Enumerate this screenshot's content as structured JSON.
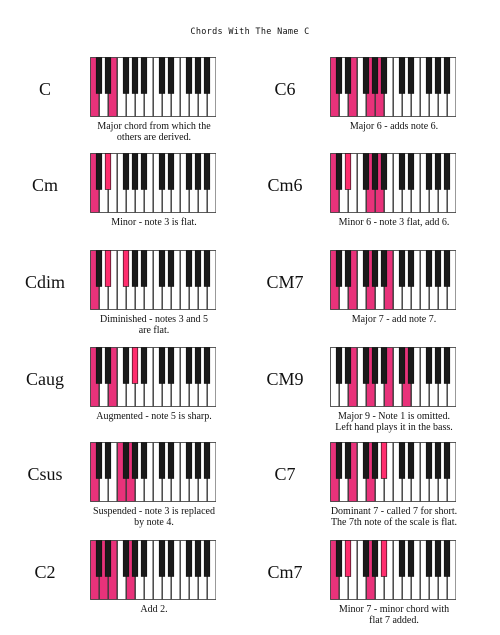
{
  "title": "Chords With The Name C",
  "colors": {
    "highlight_white": "#e8327a",
    "highlight_black": "#ff2e6e",
    "outline": "#333333"
  },
  "chords": [
    {
      "name": "C",
      "caption_lines": [
        "Major chord from which the",
        "others are derived."
      ],
      "white_keys": [
        0,
        2
      ],
      "black_keys": []
    },
    {
      "name": "C6",
      "caption_lines": [
        "Major 6 - adds note 6."
      ],
      "white_keys": [
        0,
        2,
        4,
        5
      ],
      "black_keys": []
    },
    {
      "name": "Cm",
      "caption_lines": [
        "Minor - note 3 is flat."
      ],
      "white_keys": [
        0
      ],
      "black_keys": [
        1
      ]
    },
    {
      "name": "Cm6",
      "caption_lines": [
        "Minor 6 - note 3 flat, add 6."
      ],
      "white_keys": [
        0,
        4,
        5
      ],
      "black_keys": [
        1
      ]
    },
    {
      "name": "Cdim",
      "caption_lines": [
        "Diminished - notes 3 and 5",
        "are flat."
      ],
      "white_keys": [
        0
      ],
      "black_keys": [
        1,
        2
      ]
    },
    {
      "name": "CM7",
      "caption_lines": [
        "Major 7 - add note 7."
      ],
      "white_keys": [
        0,
        2,
        4,
        6
      ],
      "black_keys": []
    },
    {
      "name": "Caug",
      "caption_lines": [
        "Augmented - note 5 is sharp."
      ],
      "white_keys": [
        0,
        2
      ],
      "black_keys": [
        3
      ]
    },
    {
      "name": "CM9",
      "caption_lines": [
        "Major 9 - Note 1 is omitted.",
        "Left hand plays it in the bass."
      ],
      "white_keys": [
        2,
        4,
        6,
        8
      ],
      "black_keys": []
    },
    {
      "name": "Csus",
      "caption_lines": [
        "Suspended - note 3 is replaced",
        "by note 4."
      ],
      "white_keys": [
        0,
        3,
        4
      ],
      "black_keys": []
    },
    {
      "name": "C7",
      "caption_lines": [
        "Dominant 7 - called 7 for short.",
        "The 7th note of the scale is flat."
      ],
      "white_keys": [
        0,
        2,
        4
      ],
      "black_keys": [
        4
      ]
    },
    {
      "name": "C2",
      "caption_lines": [
        "Add 2."
      ],
      "white_keys": [
        0,
        1,
        2,
        4
      ],
      "black_keys": []
    },
    {
      "name": "Cm7",
      "caption_lines": [
        "Minor 7 - minor chord with",
        "flat 7 added."
      ],
      "white_keys": [
        0,
        4
      ],
      "black_keys": [
        1,
        4
      ]
    }
  ]
}
